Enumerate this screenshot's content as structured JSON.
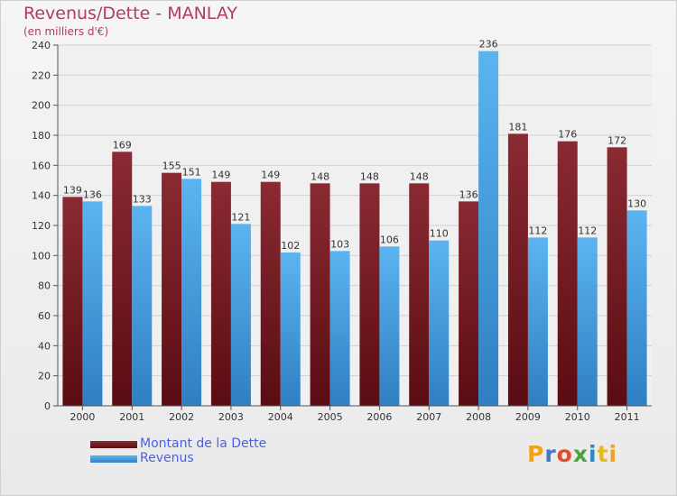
{
  "chart_data": {
    "type": "bar",
    "title": "Revenus/Dette - MANLAY",
    "subtitle": "(en milliers d'€)",
    "categories": [
      "2000",
      "2001",
      "2002",
      "2003",
      "2004",
      "2005",
      "2006",
      "2007",
      "2008",
      "2009",
      "2010",
      "2011"
    ],
    "series": [
      {
        "name": "Montant de la Dette",
        "color": "#7a1e28",
        "values": [
          139,
          169,
          155,
          149,
          149,
          148,
          148,
          148,
          136,
          181,
          176,
          172
        ]
      },
      {
        "name": "Revenus",
        "color": "#4aa3e6",
        "values": [
          136,
          133,
          151,
          121,
          102,
          103,
          106,
          110,
          236,
          112,
          112,
          130
        ]
      }
    ],
    "ylim": [
      0,
      240
    ],
    "yticks": [
      0,
      20,
      40,
      60,
      80,
      100,
      120,
      140,
      160,
      180,
      200,
      220,
      240
    ],
    "grid": true,
    "legend_position": "bottom-left"
  },
  "logo_text": "Proxiti"
}
